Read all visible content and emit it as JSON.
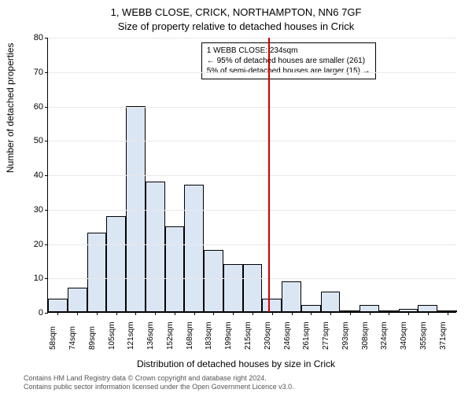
{
  "chart": {
    "type": "histogram",
    "title_line1": "1, WEBB CLOSE, CRICK, NORTHAMPTON, NN6 7GF",
    "title_line2": "Size of property relative to detached houses in Crick",
    "ylabel": "Number of detached properties",
    "xlabel": "Distribution of detached houses by size in Crick",
    "ylim": [
      0,
      80
    ],
    "ytick_step": 10,
    "yticks": [
      0,
      10,
      20,
      30,
      40,
      50,
      60,
      70,
      80
    ],
    "x_categories": [
      "58sqm",
      "74sqm",
      "89sqm",
      "105sqm",
      "121sqm",
      "136sqm",
      "152sqm",
      "168sqm",
      "183sqm",
      "199sqm",
      "215sqm",
      "230sqm",
      "246sqm",
      "261sqm",
      "277sqm",
      "293sqm",
      "308sqm",
      "324sqm",
      "340sqm",
      "355sqm",
      "371sqm"
    ],
    "values": [
      4,
      7,
      23,
      28,
      60,
      38,
      25,
      37,
      18,
      14,
      14,
      4,
      9,
      2,
      6,
      0,
      2,
      0,
      1,
      2,
      0
    ],
    "bar_fill": "#dbe6f4",
    "bar_stroke": "#000000",
    "bar_stroke_width": 0.5,
    "background_color": "#ffffff",
    "grid_color": "#e8e8e8",
    "axis_color": "#000000",
    "marker": {
      "x_category_index": 11,
      "color": "#cc0000",
      "width": 2
    },
    "annotation": {
      "lines": [
        "1 WEBB CLOSE: 234sqm",
        "← 95% of detached houses are smaller (261)",
        "5% of semi-detached houses are larger (15) →"
      ],
      "border_color": "#000000",
      "bg_color": "#ffffff",
      "font_size": 10
    },
    "title_fontsize": 13,
    "label_fontsize": 12,
    "tick_fontsize": 10
  },
  "attribution": {
    "line1": "Contains HM Land Registry data © Crown copyright and database right 2024.",
    "line2": "Contains public sector information licensed under the Open Government Licence v3.0."
  }
}
